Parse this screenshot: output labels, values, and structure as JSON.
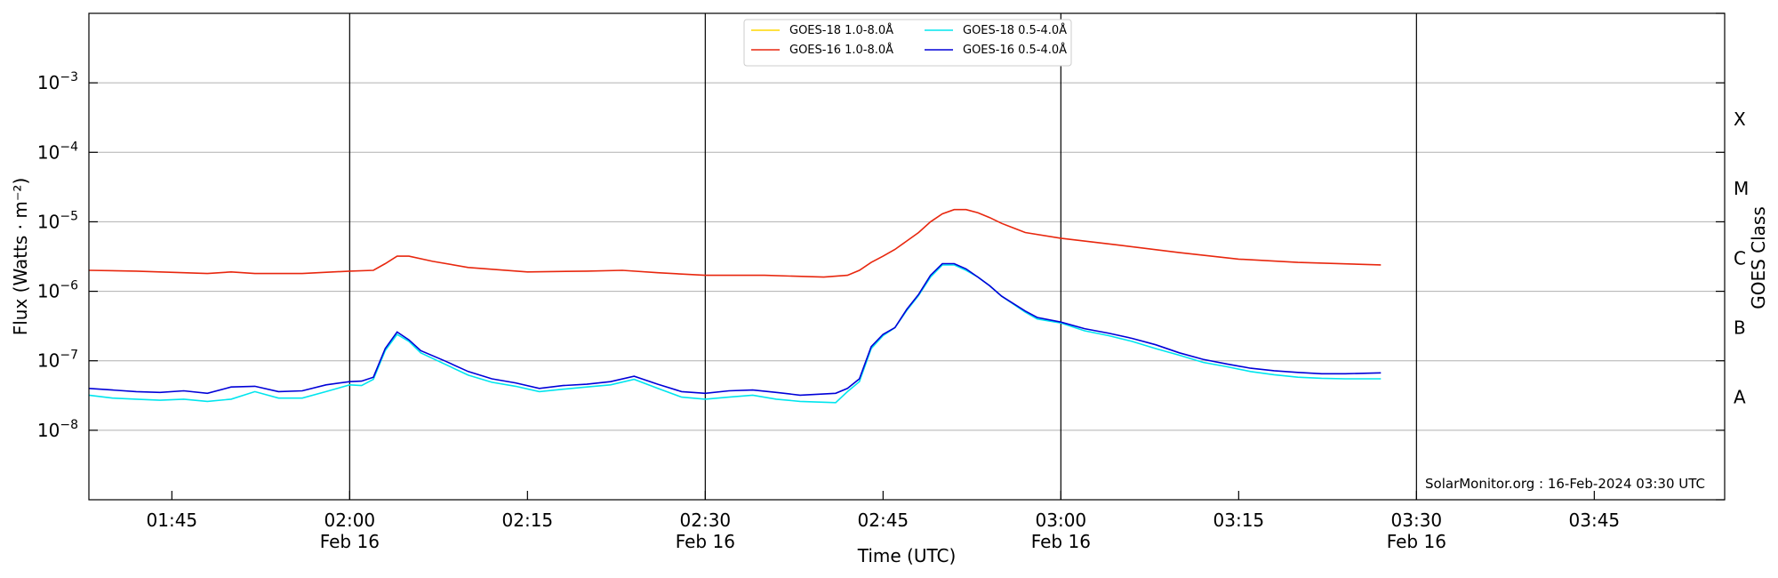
{
  "chart_data": {
    "type": "line",
    "title": "",
    "xlabel": "Time (UTC)",
    "ylabel": "Flux (Watts · m⁻²)",
    "y2label": "GOES Class",
    "y_scale": "log",
    "ylim": [
      1e-09,
      0.01
    ],
    "xlim": [
      "01:38",
      "03:56"
    ],
    "grid": "horizontal",
    "legend_position": "top-center",
    "credit": "SolarMonitor.org : 16-Feb-2024 03:30 UTC",
    "x_ticks": [
      {
        "time": "01:45",
        "label": "01:45",
        "date": ""
      },
      {
        "time": "02:00",
        "label": "02:00",
        "date": "Feb 16"
      },
      {
        "time": "02:15",
        "label": "02:15",
        "date": ""
      },
      {
        "time": "02:30",
        "label": "02:30",
        "date": "Feb 16"
      },
      {
        "time": "02:45",
        "label": "02:45",
        "date": ""
      },
      {
        "time": "03:00",
        "label": "03:00",
        "date": "Feb 16"
      },
      {
        "time": "03:15",
        "label": "03:15",
        "date": ""
      },
      {
        "time": "03:30",
        "label": "03:30",
        "date": "Feb 16"
      },
      {
        "time": "03:45",
        "label": "03:45",
        "date": ""
      }
    ],
    "vlines": [
      "02:00",
      "02:30",
      "03:00",
      "03:30"
    ],
    "y_ticks": [
      {
        "value": 1e-08,
        "base": "10",
        "exp": "−8"
      },
      {
        "value": 1e-07,
        "base": "10",
        "exp": "−7"
      },
      {
        "value": 1e-06,
        "base": "10",
        "exp": "−6"
      },
      {
        "value": 1e-05,
        "base": "10",
        "exp": "−5"
      },
      {
        "value": 0.0001,
        "base": "10",
        "exp": "−4"
      },
      {
        "value": 0.001,
        "base": "10",
        "exp": "−3"
      }
    ],
    "goes_classes": [
      {
        "label": "A",
        "value": 3e-08
      },
      {
        "label": "B",
        "value": 3e-07
      },
      {
        "label": "C",
        "value": 3e-06
      },
      {
        "label": "M",
        "value": 3e-05
      },
      {
        "label": "X",
        "value": 0.0003
      }
    ],
    "series": [
      {
        "name": "GOES-18 1.0-8.0Å",
        "color": "#ffd700",
        "points": []
      },
      {
        "name": "GOES-18 0.5-4.0Å",
        "color": "#00e5ee",
        "points": [
          [
            "01:38",
            3.2e-08
          ],
          [
            "01:40",
            2.9e-08
          ],
          [
            "01:42",
            2.8e-08
          ],
          [
            "01:44",
            2.7e-08
          ],
          [
            "01:46",
            2.8e-08
          ],
          [
            "01:48",
            2.6e-08
          ],
          [
            "01:50",
            2.8e-08
          ],
          [
            "01:52",
            3.6e-08
          ],
          [
            "01:54",
            2.9e-08
          ],
          [
            "01:56",
            2.9e-08
          ],
          [
            "01:58",
            3.6e-08
          ],
          [
            "02:00",
            4.5e-08
          ],
          [
            "02:01",
            4.4e-08
          ],
          [
            "02:02",
            5.4e-08
          ],
          [
            "02:03",
            1.4e-07
          ],
          [
            "02:04",
            2.4e-07
          ],
          [
            "02:05",
            1.9e-07
          ],
          [
            "02:06",
            1.3e-07
          ],
          [
            "02:08",
            9e-08
          ],
          [
            "02:10",
            6.2e-08
          ],
          [
            "02:12",
            4.9e-08
          ],
          [
            "02:14",
            4.3e-08
          ],
          [
            "02:16",
            3.6e-08
          ],
          [
            "02:18",
            3.9e-08
          ],
          [
            "02:20",
            4.2e-08
          ],
          [
            "02:22",
            4.5e-08
          ],
          [
            "02:24",
            5.4e-08
          ],
          [
            "02:26",
            4e-08
          ],
          [
            "02:28",
            3e-08
          ],
          [
            "02:30",
            2.8e-08
          ],
          [
            "02:32",
            3e-08
          ],
          [
            "02:34",
            3.2e-08
          ],
          [
            "02:36",
            2.8e-08
          ],
          [
            "02:38",
            2.6e-08
          ],
          [
            "02:41",
            2.5e-08
          ],
          [
            "02:42",
            3.6e-08
          ],
          [
            "02:43",
            5e-08
          ],
          [
            "02:44",
            1.5e-07
          ],
          [
            "02:45",
            2.3e-07
          ],
          [
            "02:46",
            3e-07
          ],
          [
            "02:47",
            5.3e-07
          ],
          [
            "02:48",
            8.7e-07
          ],
          [
            "02:49",
            1.6e-06
          ],
          [
            "02:50",
            2.4e-06
          ],
          [
            "02:51",
            2.4e-06
          ],
          [
            "02:52",
            2e-06
          ],
          [
            "02:53",
            1.6e-06
          ],
          [
            "02:54",
            1.2e-06
          ],
          [
            "02:55",
            8.5e-07
          ],
          [
            "02:57",
            5e-07
          ],
          [
            "02:58",
            4e-07
          ],
          [
            "03:00",
            3.5e-07
          ],
          [
            "03:02",
            2.7e-07
          ],
          [
            "03:04",
            2.3e-07
          ],
          [
            "03:06",
            1.9e-07
          ],
          [
            "03:08",
            1.5e-07
          ],
          [
            "03:10",
            1.2e-07
          ],
          [
            "03:12",
            9.5e-08
          ],
          [
            "03:14",
            8.2e-08
          ],
          [
            "03:16",
            7e-08
          ],
          [
            "03:18",
            6.3e-08
          ],
          [
            "03:20",
            5.8e-08
          ],
          [
            "03:22",
            5.6e-08
          ],
          [
            "03:24",
            5.5e-08
          ],
          [
            "03:27",
            5.5e-08
          ]
        ]
      },
      {
        "name": "GOES-16 1.0-8.0Å",
        "color": "#e8270e",
        "points": [
          [
            "01:38",
            2e-06
          ],
          [
            "01:42",
            1.95e-06
          ],
          [
            "01:46",
            1.85e-06
          ],
          [
            "01:48",
            1.8e-06
          ],
          [
            "01:50",
            1.9e-06
          ],
          [
            "01:52",
            1.8e-06
          ],
          [
            "01:56",
            1.8e-06
          ],
          [
            "02:00",
            1.95e-06
          ],
          [
            "02:02",
            2e-06
          ],
          [
            "02:03",
            2.5e-06
          ],
          [
            "02:04",
            3.2e-06
          ],
          [
            "02:05",
            3.2e-06
          ],
          [
            "02:07",
            2.7e-06
          ],
          [
            "02:10",
            2.2e-06
          ],
          [
            "02:15",
            1.9e-06
          ],
          [
            "02:20",
            1.95e-06
          ],
          [
            "02:23",
            2e-06
          ],
          [
            "02:26",
            1.85e-06
          ],
          [
            "02:30",
            1.7e-06
          ],
          [
            "02:35",
            1.7e-06
          ],
          [
            "02:40",
            1.6e-06
          ],
          [
            "02:42",
            1.7e-06
          ],
          [
            "02:43",
            2e-06
          ],
          [
            "02:44",
            2.6e-06
          ],
          [
            "02:45",
            3.2e-06
          ],
          [
            "02:46",
            4e-06
          ],
          [
            "02:47",
            5.3e-06
          ],
          [
            "02:48",
            7e-06
          ],
          [
            "02:49",
            1e-05
          ],
          [
            "02:50",
            1.3e-05
          ],
          [
            "02:51",
            1.5e-05
          ],
          [
            "02:52",
            1.5e-05
          ],
          [
            "02:53",
            1.35e-05
          ],
          [
            "02:54",
            1.15e-05
          ],
          [
            "02:55",
            9.5e-06
          ],
          [
            "02:57",
            7e-06
          ],
          [
            "03:00",
            5.8e-06
          ],
          [
            "03:05",
            4.6e-06
          ],
          [
            "03:10",
            3.6e-06
          ],
          [
            "03:15",
            2.9e-06
          ],
          [
            "03:20",
            2.6e-06
          ],
          [
            "03:27",
            2.4e-06
          ]
        ]
      },
      {
        "name": "GOES-16 0.5-4.0Å",
        "color": "#0000d8",
        "points": [
          [
            "01:38",
            4e-08
          ],
          [
            "01:40",
            3.8e-08
          ],
          [
            "01:42",
            3.6e-08
          ],
          [
            "01:44",
            3.5e-08
          ],
          [
            "01:46",
            3.7e-08
          ],
          [
            "01:48",
            3.4e-08
          ],
          [
            "01:50",
            4.2e-08
          ],
          [
            "01:52",
            4.3e-08
          ],
          [
            "01:54",
            3.6e-08
          ],
          [
            "01:56",
            3.7e-08
          ],
          [
            "01:58",
            4.5e-08
          ],
          [
            "02:00",
            5e-08
          ],
          [
            "02:01",
            5.1e-08
          ],
          [
            "02:02",
            5.8e-08
          ],
          [
            "02:03",
            1.5e-07
          ],
          [
            "02:04",
            2.6e-07
          ],
          [
            "02:05",
            2e-07
          ],
          [
            "02:06",
            1.4e-07
          ],
          [
            "02:08",
            1e-07
          ],
          [
            "02:10",
            7e-08
          ],
          [
            "02:12",
            5.5e-08
          ],
          [
            "02:14",
            4.8e-08
          ],
          [
            "02:16",
            4e-08
          ],
          [
            "02:18",
            4.4e-08
          ],
          [
            "02:20",
            4.6e-08
          ],
          [
            "02:22",
            5e-08
          ],
          [
            "02:24",
            6e-08
          ],
          [
            "02:26",
            4.6e-08
          ],
          [
            "02:28",
            3.6e-08
          ],
          [
            "02:30",
            3.4e-08
          ],
          [
            "02:32",
            3.7e-08
          ],
          [
            "02:34",
            3.8e-08
          ],
          [
            "02:36",
            3.5e-08
          ],
          [
            "02:38",
            3.2e-08
          ],
          [
            "02:41",
            3.4e-08
          ],
          [
            "02:42",
            4e-08
          ],
          [
            "02:43",
            5.5e-08
          ],
          [
            "02:44",
            1.6e-07
          ],
          [
            "02:45",
            2.4e-07
          ],
          [
            "02:46",
            3e-07
          ],
          [
            "02:47",
            5.5e-07
          ],
          [
            "02:48",
            9e-07
          ],
          [
            "02:49",
            1.7e-06
          ],
          [
            "02:50",
            2.5e-06
          ],
          [
            "02:51",
            2.5e-06
          ],
          [
            "02:52",
            2.1e-06
          ],
          [
            "02:53",
            1.6e-06
          ],
          [
            "02:54",
            1.2e-06
          ],
          [
            "02:55",
            8.5e-07
          ],
          [
            "02:57",
            5.2e-07
          ],
          [
            "02:58",
            4.2e-07
          ],
          [
            "03:00",
            3.6e-07
          ],
          [
            "03:02",
            2.9e-07
          ],
          [
            "03:04",
            2.5e-07
          ],
          [
            "03:06",
            2.1e-07
          ],
          [
            "03:08",
            1.7e-07
          ],
          [
            "03:10",
            1.3e-07
          ],
          [
            "03:12",
            1.05e-07
          ],
          [
            "03:14",
            9e-08
          ],
          [
            "03:16",
            7.8e-08
          ],
          [
            "03:18",
            7.2e-08
          ],
          [
            "03:20",
            6.8e-08
          ],
          [
            "03:22",
            6.5e-08
          ],
          [
            "03:24",
            6.5e-08
          ],
          [
            "03:27",
            6.7e-08
          ]
        ]
      }
    ]
  }
}
